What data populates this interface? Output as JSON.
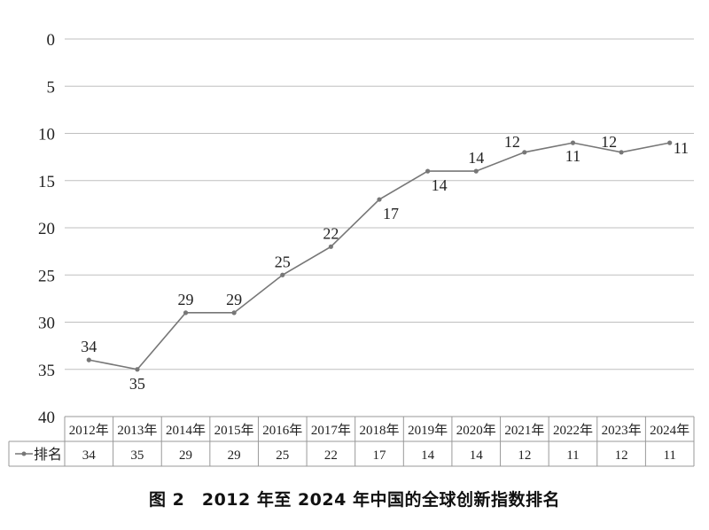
{
  "caption": "图 2　2012 年至 2024 年中国的全球创新指数排名",
  "colors": {
    "line": "#777777",
    "grid": "#bfbfbf",
    "axis": "#999999",
    "text": "#222222"
  },
  "chart_data": {
    "type": "line",
    "title": "",
    "xlabel": "",
    "ylabel": "",
    "y_inverted": true,
    "ylim": [
      0,
      40
    ],
    "yticks": [
      0,
      5,
      10,
      15,
      20,
      25,
      30,
      35,
      40
    ],
    "grid": true,
    "legend": "data-table-left",
    "categories": [
      "2012年",
      "2013年",
      "2014年",
      "2015年",
      "2016年",
      "2017年",
      "2018年",
      "2019年",
      "2020年",
      "2021年",
      "2022年",
      "2023年",
      "2024年"
    ],
    "series": [
      {
        "name": "排名",
        "values": [
          34,
          35,
          29,
          29,
          25,
          22,
          17,
          14,
          14,
          12,
          11,
          12,
          11
        ]
      }
    ],
    "data_labels": [
      "34",
      "35",
      "29",
      "29",
      "25",
      "22",
      "17",
      "14",
      "14",
      "12",
      "11",
      "12",
      "11"
    ]
  }
}
